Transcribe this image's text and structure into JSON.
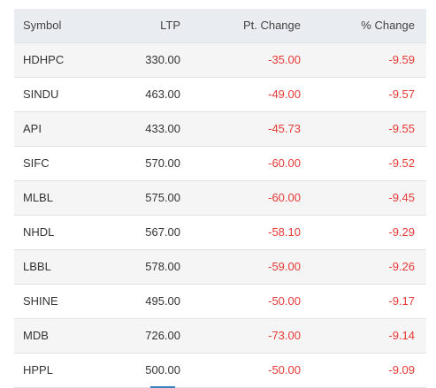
{
  "table": {
    "header": [
      "Symbol",
      "LTP",
      "Pt. Change",
      "% Change"
    ],
    "rows": [
      [
        "HDHPC",
        "330.00",
        "-35.00",
        "-9.59"
      ],
      [
        "SINDU",
        "463.00",
        "-49.00",
        "-9.57"
      ],
      [
        "API",
        "433.00",
        "-45.73",
        "-9.55"
      ],
      [
        "SIFC",
        "570.00",
        "-60.00",
        "-9.52"
      ],
      [
        "MLBL",
        "575.00",
        "-60.00",
        "-9.45"
      ],
      [
        "NHDL",
        "567.00",
        "-58.10",
        "-9.29"
      ],
      [
        "LBBL",
        "578.00",
        "-59.00",
        "-9.26"
      ],
      [
        "SHINE",
        "495.00",
        "-50.00",
        "-9.17"
      ],
      [
        "MDB",
        "726.00",
        "-73.00",
        "-9.14"
      ],
      [
        "HPPL",
        "500.00",
        "-50.00",
        "-9.09"
      ]
    ]
  }
}
